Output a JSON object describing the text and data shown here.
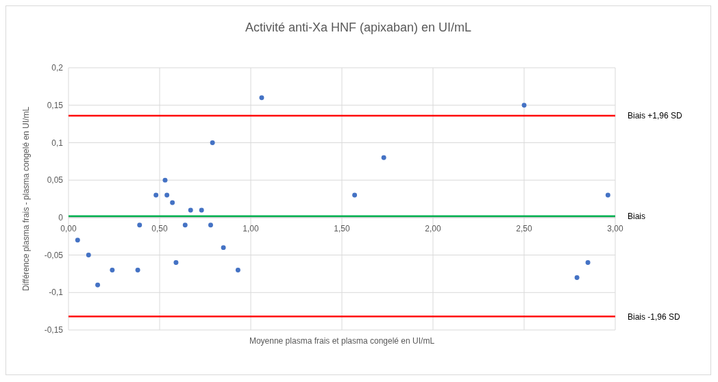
{
  "chart_data": {
    "type": "scatter",
    "title": "Activité anti-Xa HNF (apixaban) en UI/mL",
    "xlabel": "Moyenne plasma frais et plasma congelé en UI/mL",
    "ylabel": "Différence plasma frais - plasma congelé en UI/mL",
    "xlim": [
      0,
      3
    ],
    "xticks": [
      {
        "value": 0,
        "label": "0,00"
      },
      {
        "value": 0.5,
        "label": "0,50"
      },
      {
        "value": 1,
        "label": "1,00"
      },
      {
        "value": 1.5,
        "label": "1,50"
      },
      {
        "value": 2,
        "label": "2,00"
      },
      {
        "value": 2.5,
        "label": "2,50"
      },
      {
        "value": 3,
        "label": "3,00"
      }
    ],
    "ylim": [
      -0.15,
      0.2
    ],
    "yticks": [
      {
        "value": -0.15,
        "label": "-0,15"
      },
      {
        "value": -0.1,
        "label": "-0,1"
      },
      {
        "value": -0.05,
        "label": "-0,05"
      },
      0,
      {
        "value": 0.05,
        "label": "0,05"
      },
      {
        "value": 0.1,
        "label": "0,1"
      },
      {
        "value": 0.15,
        "label": "0,15"
      },
      {
        "value": 0.2,
        "label": "0,2"
      }
    ],
    "grid": true,
    "marker": "circle",
    "series": [
      {
        "color": "#4472c4",
        "x": [
          0.05,
          0.11,
          0.16,
          0.24,
          0.38,
          0.39,
          0.48,
          0.53,
          0.54,
          0.57,
          0.67,
          0.73,
          0.64,
          0.78,
          0.79,
          0.59,
          0.85,
          0.93,
          1.06,
          1.57,
          1.73,
          2.5,
          2.96,
          2.85,
          2.79
        ],
        "values": [
          -0.03,
          -0.05,
          -0.09,
          -0.07,
          -0.07,
          -0.01,
          0.03,
          0.05,
          0.03,
          0.02,
          0.01,
          0.01,
          -0.01,
          -0.01,
          0.1,
          -0.06,
          -0.04,
          -0.07,
          0.16,
          0.03,
          0.08,
          0.15,
          0.03,
          -0.06,
          -0.08
        ]
      }
    ],
    "ref_lines": [
      {
        "axis": "y",
        "value": 0.136,
        "label": "Biais +1,96 SD",
        "color": "#ff0000"
      },
      {
        "axis": "y",
        "value": 0.002,
        "label": "Biais",
        "color": "#00b050"
      },
      {
        "axis": "y",
        "value": -0.132,
        "label": "Biais -1,96 SD",
        "color": "#ff0000"
      }
    ]
  }
}
